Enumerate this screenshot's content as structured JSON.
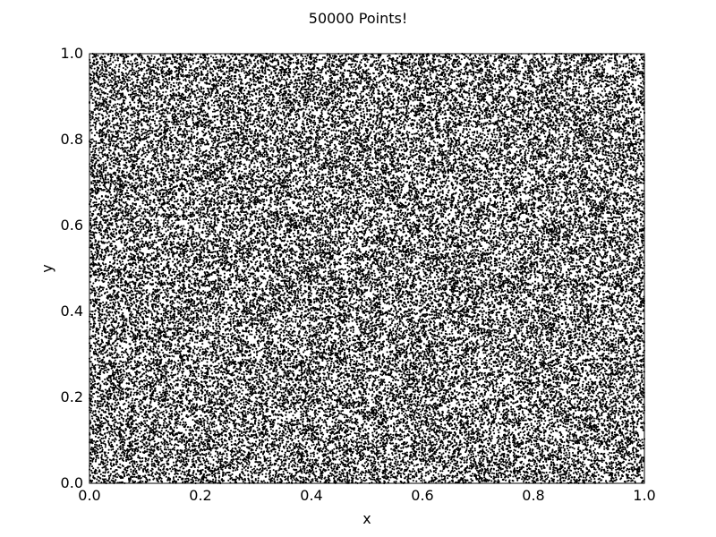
{
  "chart_data": {
    "type": "scatter",
    "title": "50000 Points!",
    "xlabel": "x",
    "ylabel": "y",
    "xlim": [
      0.0,
      1.0
    ],
    "ylim": [
      0.0,
      1.0
    ],
    "x_ticks": [
      "0.0",
      "0.2",
      "0.4",
      "0.6",
      "0.8",
      "1.0"
    ],
    "y_ticks": [
      "0.0",
      "0.2",
      "0.4",
      "0.6",
      "0.8",
      "1.0"
    ],
    "grid": false,
    "legend": "none",
    "marker_color": "#000000",
    "series": [
      {
        "points": [
          [
            0.05,
            0.05
          ],
          [
            0.1,
            0.2
          ],
          [
            0.15,
            0.35
          ],
          [
            0.2,
            0.5
          ],
          [
            0.25,
            0.65
          ],
          [
            0.3,
            0.8
          ],
          [
            0.35,
            0.95
          ],
          [
            0.4,
            0.1
          ],
          [
            0.45,
            0.25
          ],
          [
            0.5,
            0.4
          ],
          [
            0.55,
            0.55
          ],
          [
            0.6,
            0.7
          ],
          [
            0.65,
            0.85
          ],
          [
            0.7,
            0.15
          ],
          [
            0.75,
            0.3
          ],
          [
            0.8,
            0.45
          ],
          [
            0.85,
            0.6
          ],
          [
            0.9,
            0.75
          ],
          [
            0.95,
            0.9
          ]
        ]
      }
    ],
    "n_points": 50000
  }
}
